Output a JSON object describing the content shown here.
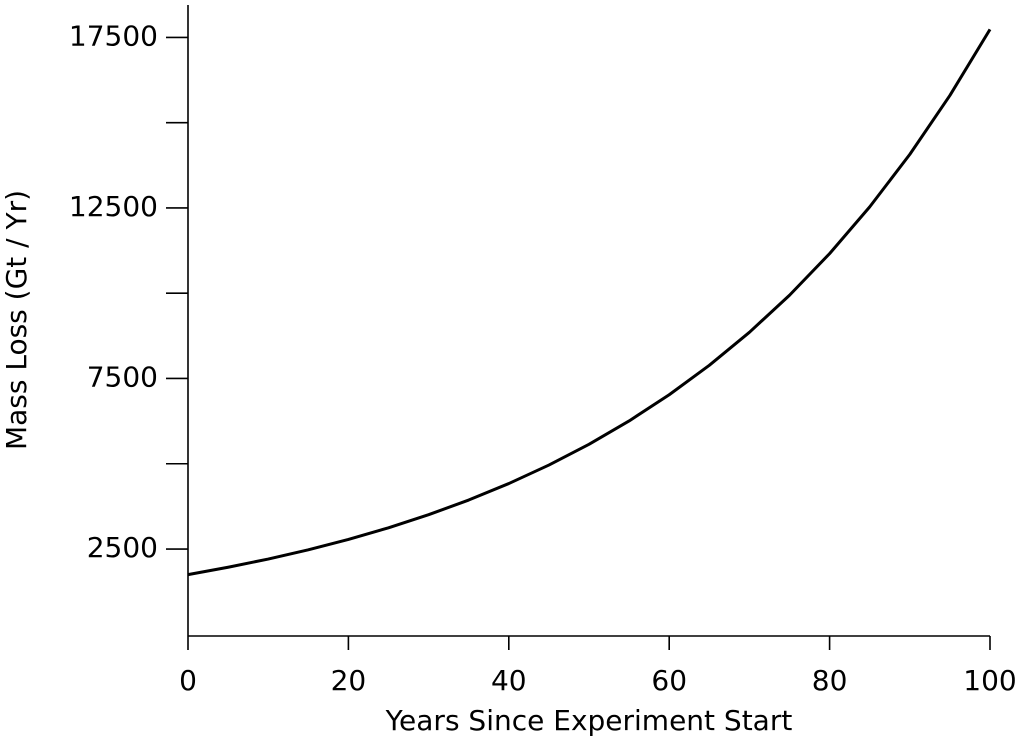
{
  "chart_data": {
    "type": "line",
    "xlabel": "Years Since Experiment Start",
    "ylabel": "Mass Loss (Gt / Yr)",
    "x": [
      0,
      5,
      10,
      15,
      20,
      25,
      30,
      35,
      40,
      45,
      50,
      55,
      60,
      65,
      70,
      75,
      80,
      85,
      90,
      95,
      100
    ],
    "series": [
      {
        "color": "#000000",
        "values": [
          1750,
          1965,
          2206,
          2477,
          2781,
          3122,
          3506,
          3936,
          4419,
          4962,
          5571,
          6255,
          7023,
          7886,
          8854,
          9941,
          11161,
          12532,
          14070,
          15798,
          17736
        ]
      }
    ],
    "xlim": [
      0,
      100
    ],
    "xticks": [
      0,
      20,
      40,
      60,
      80,
      100
    ],
    "ylim": [
      -50,
      18450
    ],
    "yticks": [
      2500,
      7500,
      12500,
      17500
    ],
    "minor_yticks": [
      5000,
      10000,
      15000
    ],
    "grid": false
  }
}
